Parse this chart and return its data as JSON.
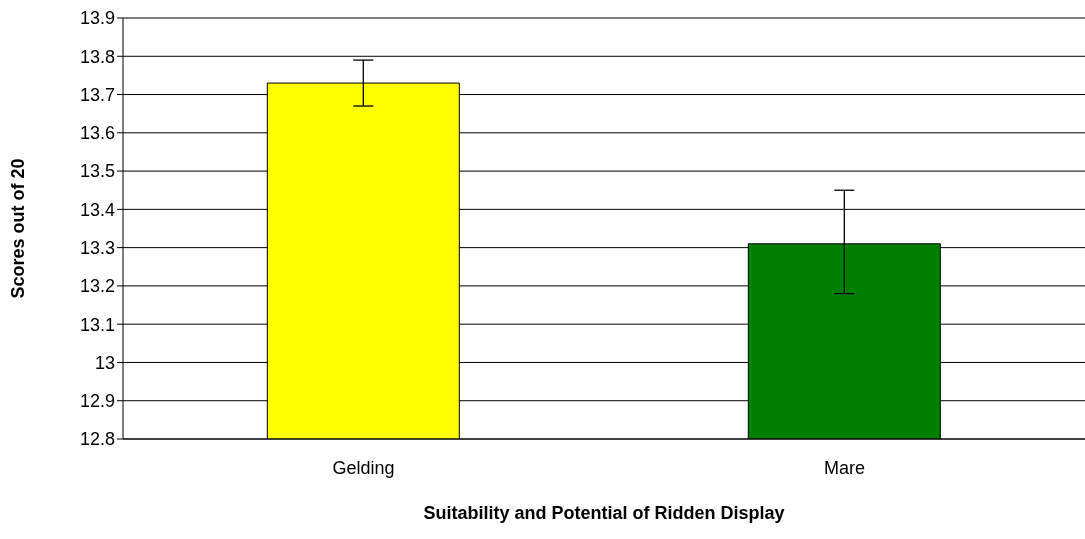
{
  "chart_data": {
    "type": "bar",
    "xlabel": "Suitability and Potential of Ridden Display",
    "ylabel": "Scores out of 20",
    "categories": [
      "Gelding",
      "Mare"
    ],
    "values": [
      13.73,
      13.31
    ],
    "colors": [
      "#ffff00",
      "#008000"
    ],
    "errors": [
      [
        13.67,
        13.79
      ],
      [
        13.18,
        13.45
      ]
    ],
    "ylim": [
      12.8,
      13.9
    ],
    "yticks": [
      12.8,
      12.9,
      13,
      13.1,
      13.2,
      13.3,
      13.4,
      13.5,
      13.6,
      13.7,
      13.8,
      13.9
    ],
    "grid": "y"
  }
}
